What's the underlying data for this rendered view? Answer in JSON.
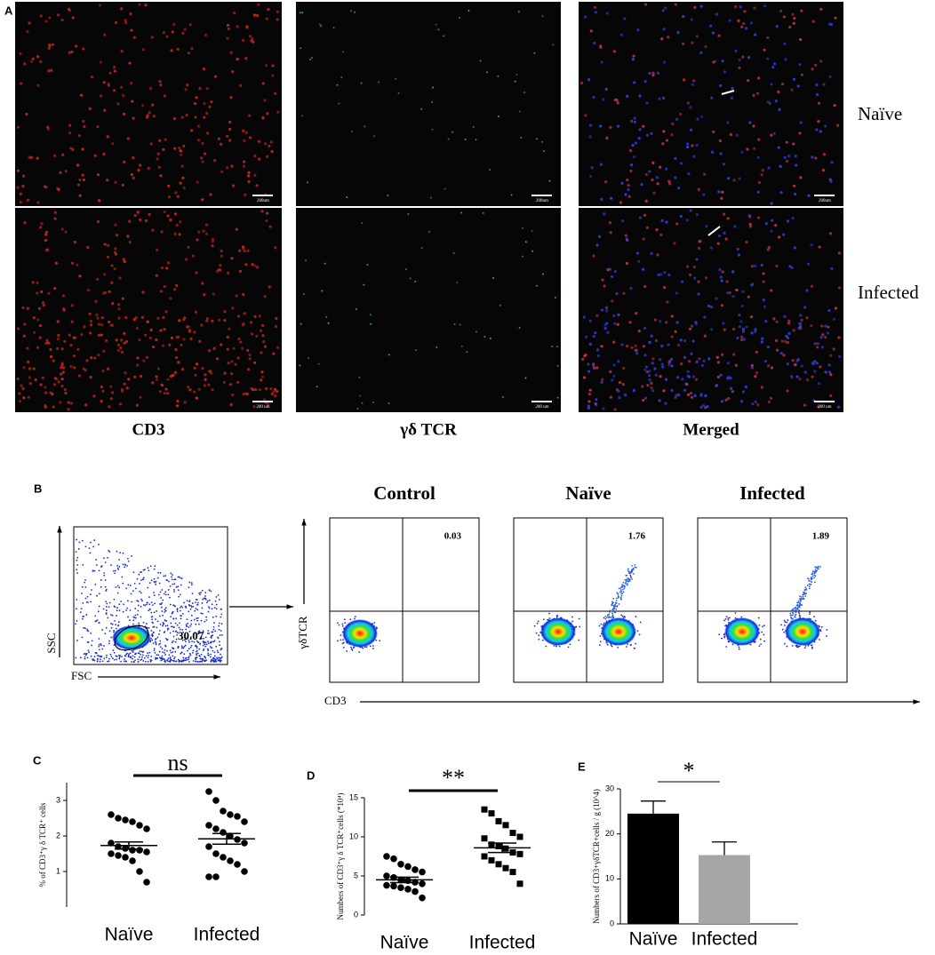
{
  "panel_a": {
    "label": "A",
    "columns": [
      "CD3",
      "γδ TCR",
      "Merged"
    ],
    "rows": [
      "Naïve",
      "Infected"
    ],
    "scale_bars": [
      [
        "200um",
        "200um",
        "200um"
      ],
      [
        "200 um",
        "200 um",
        "200 um"
      ]
    ]
  },
  "panel_b": {
    "label": "B",
    "gating": {
      "y_label": "SSC",
      "x_label": "FSC",
      "gate_value": 30.07
    },
    "y_label": "γδTCR",
    "x_label": "CD3",
    "plots": [
      {
        "title": "Control",
        "value": 0.03
      },
      {
        "title": "Naïve",
        "value": 1.76
      },
      {
        "title": "Infected",
        "value": 1.89
      }
    ]
  },
  "chart_data": [
    {
      "type": "dot",
      "panel_label": "C",
      "y_label": "% of CD3⁺γ δ TCR⁺ cells",
      "annotation": "ns",
      "categories": [
        "Naïve",
        "Infected"
      ],
      "markers": [
        "circle",
        "circle"
      ],
      "color": "#000000",
      "ylim": [
        0,
        3.5
      ],
      "yticks": [
        1,
        2,
        3
      ],
      "groups": [
        {
          "values": [
            2.6,
            2.5,
            2.45,
            2.4,
            2.3,
            2.2,
            1.8,
            1.7,
            1.65,
            1.6,
            1.6,
            1.55,
            1.5,
            1.45,
            1.4,
            1.3,
            1.0,
            0.7
          ],
          "mean": 1.73,
          "sem": 0.1
        },
        {
          "values": [
            3.25,
            3.0,
            2.7,
            2.6,
            2.55,
            2.4,
            2.3,
            2.2,
            2.1,
            2.0,
            1.9,
            1.8,
            1.7,
            1.5,
            1.4,
            1.3,
            1.2,
            1.0,
            0.85,
            0.85
          ],
          "mean": 1.92,
          "sem": 0.15
        }
      ]
    },
    {
      "type": "dot",
      "panel_label": "D",
      "y_label": "Numbers of CD3⁺γ δ TCR⁺cells  (*10⁴)",
      "annotation": "**",
      "categories": [
        "Naïve",
        "Infected"
      ],
      "markers": [
        "circle",
        "square"
      ],
      "color": "#000000",
      "ylim": [
        0,
        15
      ],
      "yticks": [
        0,
        5,
        10,
        15
      ],
      "groups": [
        {
          "values": [
            7.5,
            7.2,
            6.5,
            6.2,
            5.8,
            5.5,
            5.0,
            4.8,
            4.5,
            4.4,
            4.2,
            4.0,
            3.8,
            3.7,
            3.5,
            3.3,
            3.0,
            2.2
          ],
          "mean": 4.5,
          "sem": 0.35
        },
        {
          "values": [
            13.5,
            13.0,
            12.0,
            11.5,
            10.5,
            10.0,
            9.8,
            9.0,
            8.8,
            8.5,
            8.0,
            7.8,
            7.5,
            7.0,
            6.5,
            6.0,
            5.5,
            4.0
          ],
          "mean": 8.6,
          "sem": 0.6
        }
      ]
    },
    {
      "type": "bar",
      "panel_label": "E",
      "y_label": "Numbers of CD3+γδTCR+cells / g (10^4)",
      "annotation": "*",
      "categories": [
        "Naïve",
        "Infected"
      ],
      "values": [
        24.5,
        15.3
      ],
      "errors": [
        2.8,
        2.9
      ],
      "colors": [
        "#000000",
        "#a6a6a6"
      ],
      "ylim": [
        0,
        30
      ],
      "yticks": [
        0,
        10,
        20,
        30
      ]
    }
  ]
}
